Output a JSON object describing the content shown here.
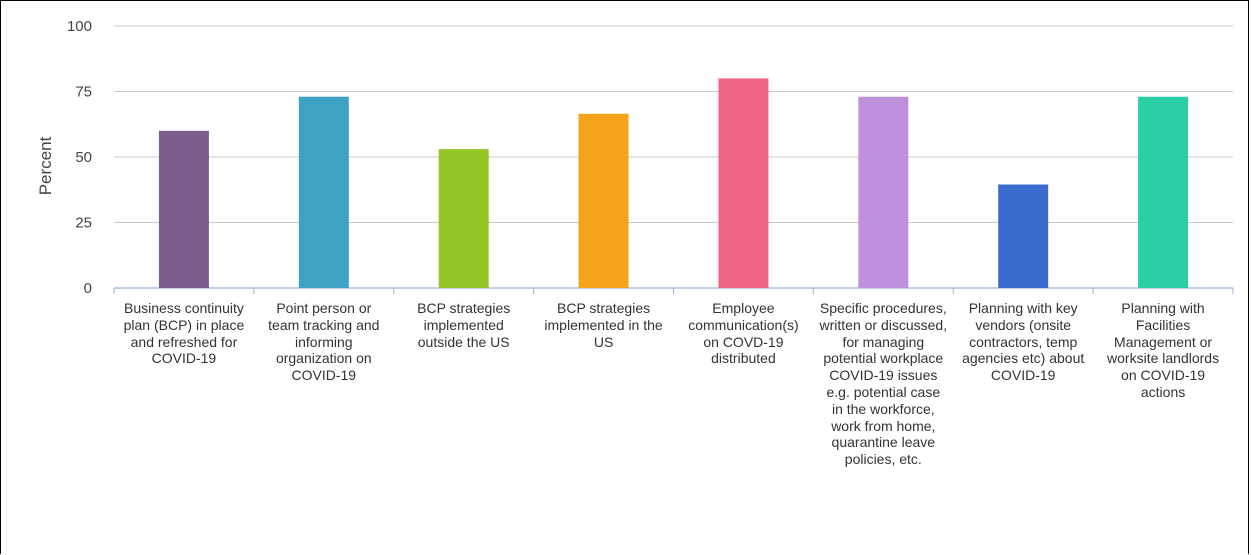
{
  "chart_data": {
    "type": "bar",
    "ylabel": "Percent",
    "xlabel": "",
    "ylim": [
      0,
      100
    ],
    "yticks": [
      0,
      25,
      50,
      75,
      100
    ],
    "grid": true,
    "categories": [
      "Business continuity plan (BCP) in place and refreshed for COVID-19",
      "Point person or team tracking and informing organization on COVID-19",
      "BCP strategies implemented outside the US",
      "BCP strategies implemented in the US",
      "Employee communication(s) on COVD-19 distributed",
      "Specific procedures, written or discussed, for managing potential workplace COVID-19 issues e.g. potential case in the workforce, work from home, quarantine leave policies, etc.",
      "Planning with key vendors (onsite contractors, temp agencies etc) about COVID-19",
      "Planning with Facilities Management or worksite landlords on COVID-19 actions"
    ],
    "values": [
      60,
      73,
      53,
      66.5,
      80,
      73,
      39.5,
      73
    ],
    "colors": [
      "#7b5e8e",
      "#3ea2c4",
      "#95c625",
      "#f5a31a",
      "#f06484",
      "#bf90db",
      "#3b6bcc",
      "#2acfa5"
    ]
  }
}
